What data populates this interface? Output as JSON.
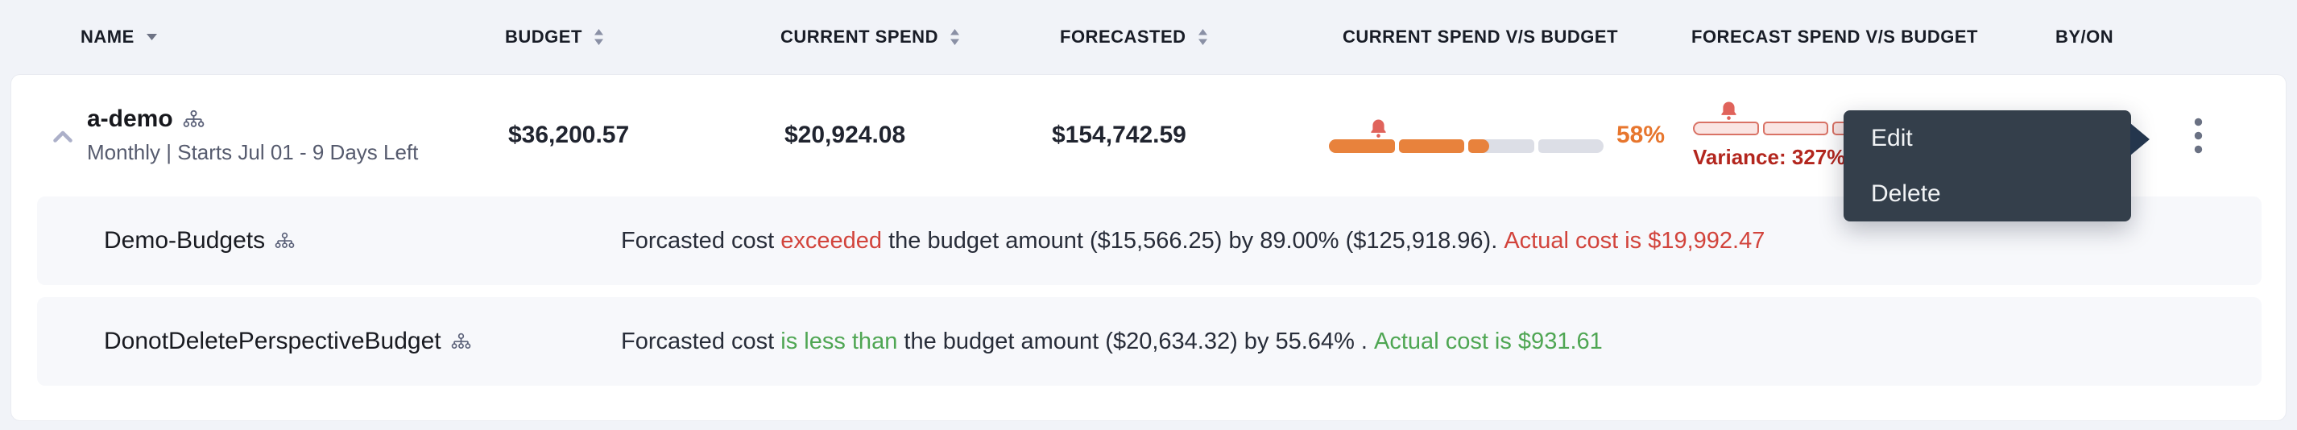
{
  "colors": {
    "accent_orange": "#E8823C",
    "bar_track": "#DCDEE6",
    "percent_orange": "#E7762E",
    "danger_red": "#D2443C",
    "variance_red": "#B3261E",
    "success_green": "#4FA653",
    "pink_fill": "#FAE5E3",
    "pink_border": "#D97265",
    "bell_red": "#E0635B",
    "menu_bg": "#343F4B",
    "menu_arrow": "#24364D",
    "text_dark": "#21252F",
    "text_muted": "#565B6E"
  },
  "header": {
    "columns": [
      {
        "label": "NAME",
        "icon": "filter-caret"
      },
      {
        "label": "BUDGET",
        "icon": "sort"
      },
      {
        "label": "CURRENT SPEND",
        "icon": "sort"
      },
      {
        "label": "FORECASTED",
        "icon": "sort"
      },
      {
        "label": "CURRENT SPEND V/S BUDGET",
        "icon": "none"
      },
      {
        "label": "FORECAST SPEND V/S BUDGET",
        "icon": "none"
      },
      {
        "label": "BY/ON",
        "icon": "none"
      }
    ]
  },
  "budget_row": {
    "name": "a-demo",
    "schedule": "Monthly | Starts Jul 01 - 9 Days Left",
    "budget": "$36,200.57",
    "current_spend": "$20,924.08",
    "forecasted": "$154,742.59",
    "current_vs_budget": {
      "percent_label": "58%",
      "fill_percent": 58,
      "alert_marker_percent": 18,
      "segment_count": 4,
      "style": "solid"
    },
    "forecast_vs_budget": {
      "fill_percent": 100,
      "alert_marker_percent": 13,
      "segment_count": 4,
      "style": "outline",
      "variance_label": "Variance: 327%",
      "divider": "|"
    }
  },
  "sub_rows": [
    {
      "name": "Demo-Budgets",
      "message": [
        {
          "text": "Forcasted cost ",
          "tone": "default"
        },
        {
          "text": "exceeded",
          "tone": "danger"
        },
        {
          "text": " the budget amount ($15,566.25) by 89.00% ($125,918.96). ",
          "tone": "default"
        },
        {
          "text": "Actual cost is $19,992.47",
          "tone": "danger"
        }
      ]
    },
    {
      "name": "DonotDeletePerspectiveBudget",
      "message": [
        {
          "text": "Forcasted cost ",
          "tone": "default"
        },
        {
          "text": "is less than",
          "tone": "success"
        },
        {
          "text": " the budget amount ($20,634.32) by 55.64% . ",
          "tone": "default"
        },
        {
          "text": "Actual cost is $931.61",
          "tone": "success"
        }
      ]
    }
  ],
  "context_menu": {
    "items": [
      {
        "label": "Edit"
      },
      {
        "label": "Delete"
      }
    ]
  }
}
